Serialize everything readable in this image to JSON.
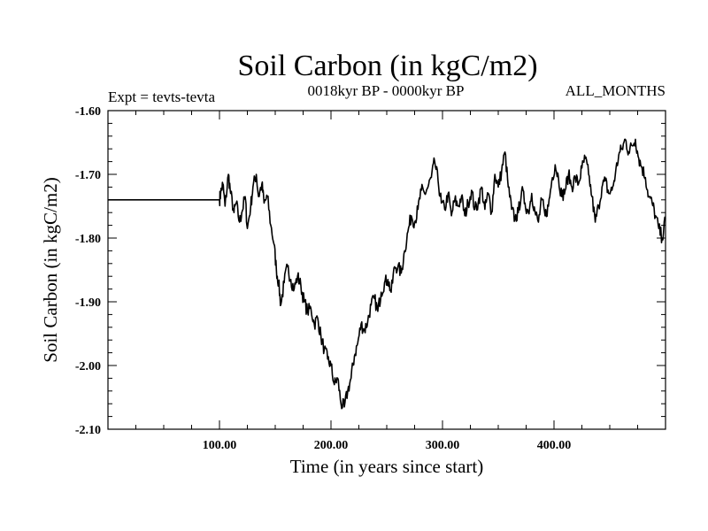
{
  "chart_data": {
    "type": "line",
    "title": "Soil Carbon (in kgC/m2)",
    "subtitle": "0018kyr BP - 0000kyr BP",
    "left_label": "Expt = tevts-tevta",
    "right_label": "ALL_MONTHS",
    "xlabel": "Time (in years since start)",
    "ylabel": "Soil Carbon (in kgC/m2)",
    "xlim": [
      0,
      500
    ],
    "ylim": [
      -2.1,
      -1.6
    ],
    "x_ticks": [
      100,
      200,
      300,
      400
    ],
    "x_tick_labels": [
      "100.00",
      "200.00",
      "300.00",
      "400.00"
    ],
    "y_ticks": [
      -1.6,
      -1.7,
      -1.8,
      -1.9,
      -2.0,
      -2.1
    ],
    "y_tick_labels": [
      "-1.60",
      "-1.70",
      "-1.80",
      "-1.90",
      "-2.00",
      "-2.10"
    ],
    "grid": false,
    "series": [
      {
        "name": "Soil Carbon",
        "x": [
          0,
          100,
          101,
          103,
          105,
          108,
          110,
          113,
          115,
          118,
          120,
          123,
          125,
          128,
          130,
          133,
          135,
          138,
          140,
          143,
          146,
          149,
          151,
          153,
          155,
          158,
          161,
          164,
          167,
          170,
          173,
          176,
          179,
          182,
          185,
          188,
          191,
          194,
          197,
          200,
          203,
          206,
          209,
          212,
          215,
          218,
          221,
          224,
          227,
          230,
          233,
          236,
          239,
          242,
          245,
          248,
          251,
          254,
          257,
          260,
          263,
          266,
          269,
          272,
          275,
          278,
          281,
          284,
          287,
          290,
          293,
          296,
          299,
          302,
          305,
          308,
          311,
          314,
          317,
          320,
          323,
          326,
          329,
          332,
          335,
          338,
          341,
          344,
          347,
          350,
          353,
          356,
          359,
          362,
          365,
          368,
          371,
          374,
          377,
          380,
          383,
          386,
          389,
          392,
          395,
          398,
          401,
          404,
          407,
          410,
          413,
          416,
          419,
          422,
          425,
          428,
          431,
          434,
          437,
          440,
          443,
          446,
          449,
          452,
          455,
          458,
          461,
          464,
          467,
          470,
          473,
          476,
          479,
          482,
          485,
          488,
          491,
          494,
          497,
          500
        ],
        "y": [
          -1.74,
          -1.74,
          -1.73,
          -1.715,
          -1.75,
          -1.7,
          -1.73,
          -1.76,
          -1.745,
          -1.775,
          -1.76,
          -1.735,
          -1.785,
          -1.75,
          -1.72,
          -1.7,
          -1.735,
          -1.715,
          -1.745,
          -1.735,
          -1.78,
          -1.81,
          -1.85,
          -1.87,
          -1.905,
          -1.87,
          -1.845,
          -1.865,
          -1.88,
          -1.86,
          -1.875,
          -1.9,
          -1.915,
          -1.91,
          -1.935,
          -1.925,
          -1.955,
          -1.975,
          -1.99,
          -2.0,
          -2.03,
          -2.02,
          -2.06,
          -2.065,
          -2.04,
          -2.02,
          -1.985,
          -1.965,
          -1.935,
          -1.945,
          -1.93,
          -1.905,
          -1.895,
          -1.915,
          -1.885,
          -1.87,
          -1.865,
          -1.885,
          -1.845,
          -1.845,
          -1.855,
          -1.82,
          -1.79,
          -1.765,
          -1.775,
          -1.755,
          -1.725,
          -1.73,
          -1.72,
          -1.705,
          -1.68,
          -1.71,
          -1.745,
          -1.755,
          -1.73,
          -1.765,
          -1.74,
          -1.75,
          -1.735,
          -1.765,
          -1.745,
          -1.725,
          -1.755,
          -1.745,
          -1.72,
          -1.755,
          -1.73,
          -1.76,
          -1.7,
          -1.72,
          -1.695,
          -1.665,
          -1.72,
          -1.755,
          -1.77,
          -1.76,
          -1.725,
          -1.745,
          -1.76,
          -1.73,
          -1.76,
          -1.775,
          -1.74,
          -1.765,
          -1.75,
          -1.71,
          -1.685,
          -1.705,
          -1.735,
          -1.725,
          -1.7,
          -1.72,
          -1.705,
          -1.715,
          -1.69,
          -1.675,
          -1.7,
          -1.735,
          -1.775,
          -1.75,
          -1.72,
          -1.71,
          -1.73,
          -1.725,
          -1.7,
          -1.67,
          -1.66,
          -1.645,
          -1.665,
          -1.655,
          -1.645,
          -1.675,
          -1.69,
          -1.705,
          -1.735,
          -1.745,
          -1.765,
          -1.785,
          -1.8,
          -1.77
        ]
      }
    ]
  }
}
